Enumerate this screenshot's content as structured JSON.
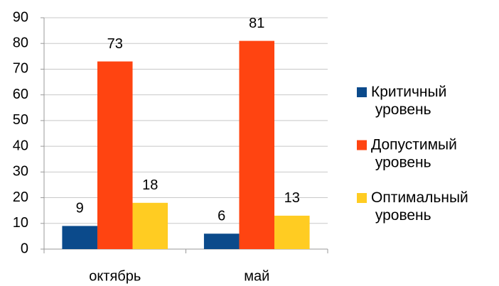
{
  "chart_data": {
    "type": "bar",
    "categories": [
      "октябрь",
      "май"
    ],
    "series": [
      {
        "name": "Критичный уровень",
        "color": "#0b4a8b",
        "values": [
          9,
          6
        ]
      },
      {
        "name": "Допустимый уровень",
        "color": "#ff4411",
        "values": [
          73,
          81
        ]
      },
      {
        "name": "Оптимальный уровень",
        "color": "#ffcc22",
        "values": [
          18,
          13
        ]
      }
    ],
    "ylim": [
      0,
      90
    ],
    "yticks": [
      0,
      10,
      20,
      30,
      40,
      50,
      60,
      70,
      80,
      90
    ],
    "grid": true,
    "legend": "right"
  }
}
